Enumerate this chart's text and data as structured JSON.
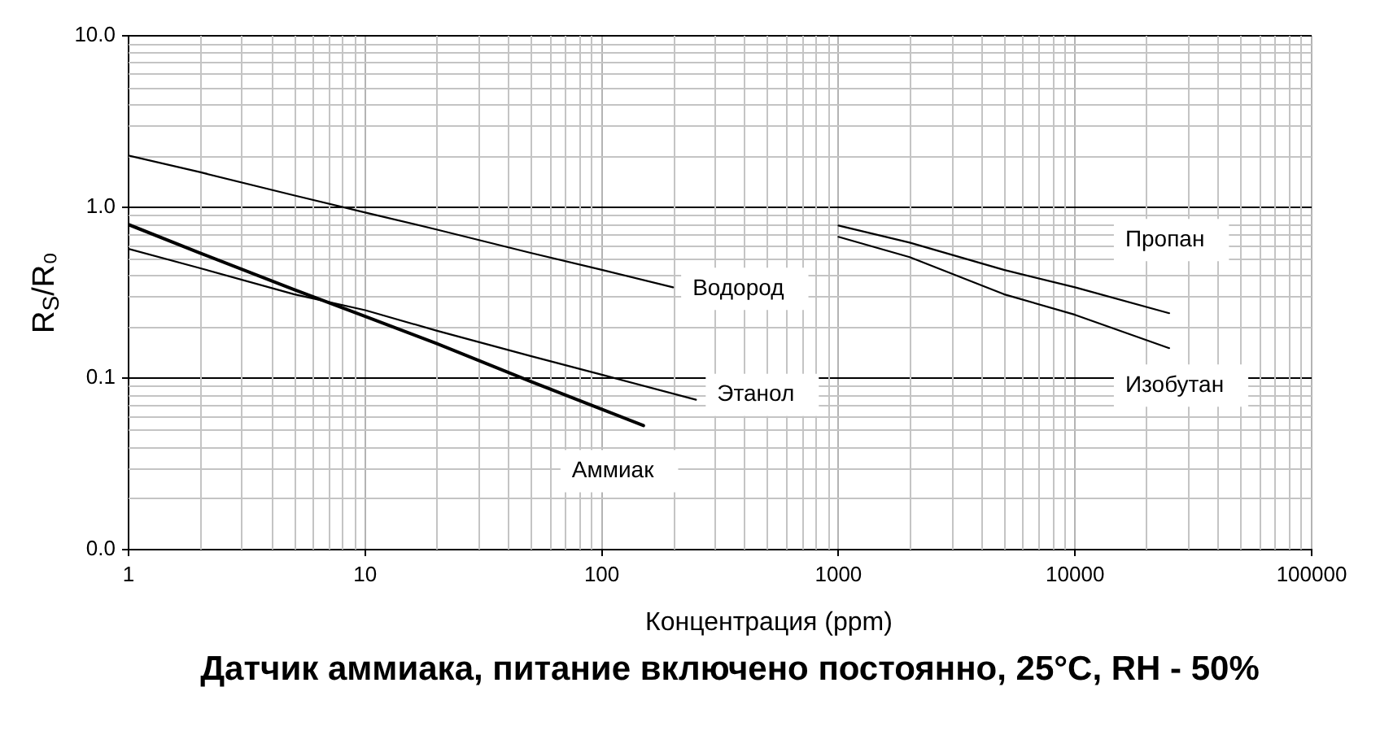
{
  "chart_data": {
    "type": "line",
    "title": "Датчик аммиака, питание включено постоянно, 25°C, RH - 50%",
    "xlabel": "Концентрация (ppm)",
    "ylabel": "R$_{S}$/R₀",
    "log": "xy",
    "xlim": [
      1,
      100000
    ],
    "ylim": [
      0.01,
      10
    ],
    "xticks": [
      1,
      10,
      100,
      1000,
      10000,
      100000
    ],
    "yticks": [
      {
        "value": 0.01,
        "label": "0.0"
      },
      {
        "value": 0.1,
        "label": "0.1"
      },
      {
        "value": 1,
        "label": "1.0"
      },
      {
        "value": 10,
        "label": "10.0"
      }
    ],
    "grid": true,
    "legend": false,
    "line_style": "solid",
    "series": [
      {
        "name": "Водород",
        "color": "#000000",
        "x": [
          1,
          2,
          5,
          10,
          20,
          50,
          100,
          200
        ],
        "values": [
          2.0,
          1.6,
          1.17,
          0.93,
          0.74,
          0.54,
          0.43,
          0.34
        ]
      },
      {
        "name": "Этанол",
        "color": "#000000",
        "x": [
          1,
          2,
          5,
          10,
          20,
          50,
          100,
          250
        ],
        "values": [
          0.57,
          0.44,
          0.31,
          0.25,
          0.19,
          0.135,
          0.105,
          0.075
        ]
      },
      {
        "name": "Аммиак",
        "color": "#000000",
        "x": [
          1,
          2,
          5,
          10,
          20,
          50,
          100,
          150
        ],
        "values": [
          0.79,
          0.54,
          0.33,
          0.23,
          0.16,
          0.096,
          0.066,
          0.053
        ]
      },
      {
        "name": "Пропан",
        "color": "#000000",
        "x": [
          1000,
          2000,
          5000,
          10000,
          25000
        ],
        "values": [
          0.78,
          0.62,
          0.43,
          0.34,
          0.24
        ]
      },
      {
        "name": "Изобутан",
        "color": "#000000",
        "x": [
          1000,
          2000,
          5000,
          10000,
          25000
        ],
        "values": [
          0.67,
          0.51,
          0.31,
          0.235,
          0.15
        ]
      }
    ]
  }
}
